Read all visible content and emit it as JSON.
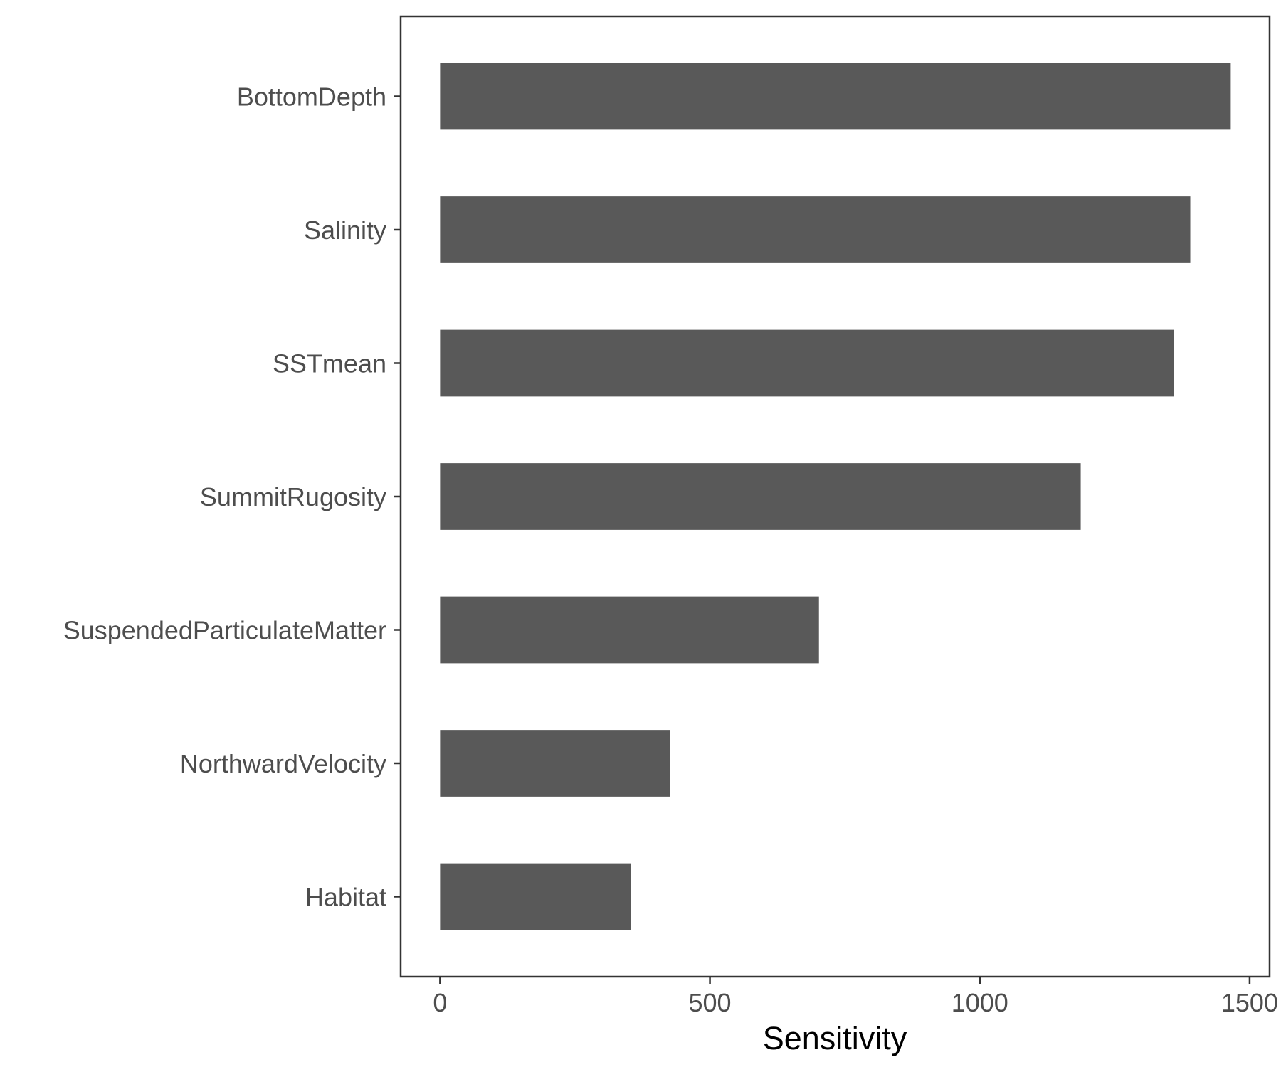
{
  "chart_data": {
    "type": "bar",
    "orientation": "horizontal",
    "categories": [
      "BottomDepth",
      "Salinity",
      "SSTmean",
      "SummitRugosity",
      "SuspendedParticulateMatter",
      "NorthwardVelocity",
      "Habitat"
    ],
    "values": [
      1465,
      1390,
      1360,
      1187,
      702,
      426,
      353
    ],
    "title": "",
    "xlabel": "Sensitivity",
    "ylabel": "",
    "xlim": [
      -73,
      1537
    ],
    "xticks": [
      0,
      500,
      1000,
      1500
    ],
    "xtick_labels": [
      "0",
      "500",
      "1000",
      "1500"
    ],
    "grid": false,
    "legend": "none",
    "colors": {
      "bar": "#595959",
      "panel_border": "#333333",
      "tick_text": "#4d4d4d",
      "axis_title": "#000000",
      "background": "#ffffff"
    }
  }
}
